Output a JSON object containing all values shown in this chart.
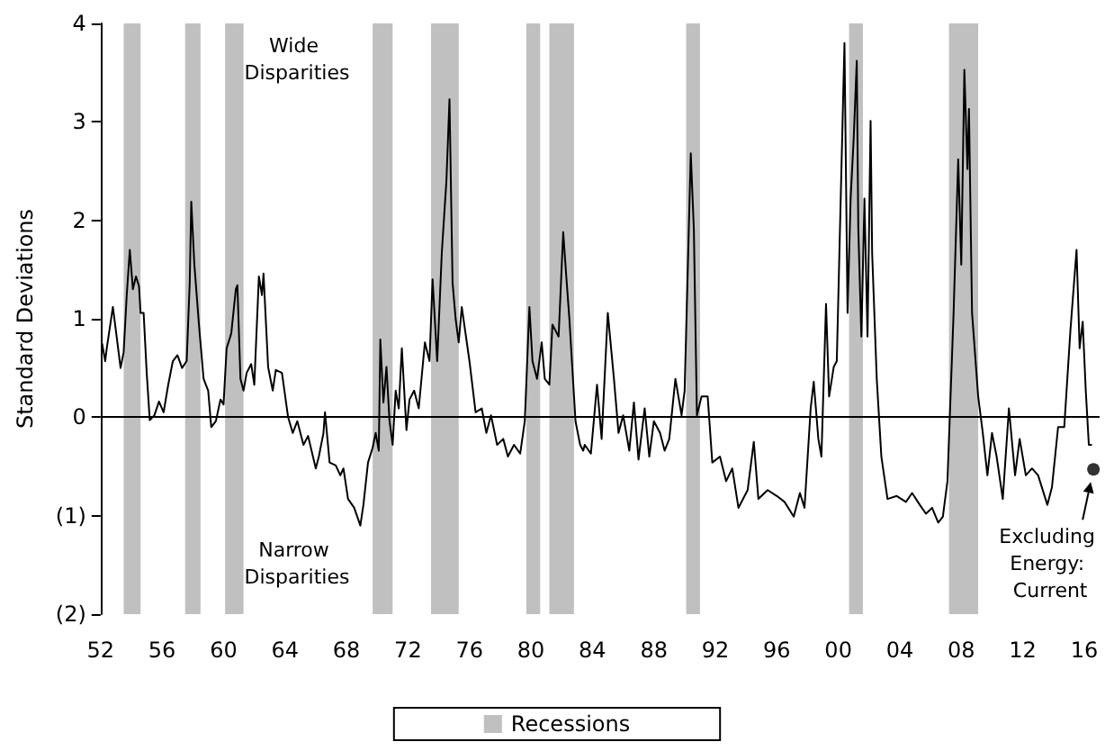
{
  "chart_data": {
    "type": "line",
    "ylabel": "Standard Deviations",
    "xlim": [
      1952,
      2017
    ],
    "xticks": [
      {
        "value": 1952,
        "label": "52"
      },
      {
        "value": 1956,
        "label": "56"
      },
      {
        "value": 1960,
        "label": "60"
      },
      {
        "value": 1964,
        "label": "64"
      },
      {
        "value": 1968,
        "label": "68"
      },
      {
        "value": 1972,
        "label": "72"
      },
      {
        "value": 1976,
        "label": "76"
      },
      {
        "value": 1980,
        "label": "80"
      },
      {
        "value": 1984,
        "label": "84"
      },
      {
        "value": 1988,
        "label": "88"
      },
      {
        "value": 1992,
        "label": "92"
      },
      {
        "value": 1996,
        "label": "96"
      },
      {
        "value": 2000,
        "label": "00"
      },
      {
        "value": 2004,
        "label": "04"
      },
      {
        "value": 2008,
        "label": "08"
      },
      {
        "value": 2012,
        "label": "12"
      },
      {
        "value": 2016,
        "label": "16"
      }
    ],
    "ylim": [
      -2,
      4
    ],
    "yticks": [
      {
        "value": -2,
        "label": "(2)"
      },
      {
        "value": -1,
        "label": "(1)"
      },
      0,
      1,
      2,
      3,
      4
    ],
    "grid": false,
    "legend": "bottom",
    "series": [
      {
        "color": "#000000",
        "x": [
          1952.1,
          1952.3,
          1952.4,
          1952.8,
          1953.1,
          1953.3,
          1953.5,
          1953.7,
          1953.9,
          1954.1,
          1954.3,
          1954.5,
          1954.6,
          1954.8,
          1955.0,
          1955.2,
          1955.5,
          1955.8,
          1956.1,
          1956.4,
          1956.7,
          1957.0,
          1957.3,
          1957.6,
          1957.8,
          1957.9,
          1958.1,
          1958.4,
          1958.7,
          1959.0,
          1959.2,
          1959.5,
          1959.8,
          1960.0,
          1960.2,
          1960.5,
          1960.8,
          1960.9,
          1961.1,
          1961.3,
          1961.5,
          1961.8,
          1962.0,
          1962.3,
          1962.5,
          1962.6,
          1962.9,
          1963.2,
          1963.4,
          1963.8,
          1964.2,
          1964.5,
          1964.8,
          1965.2,
          1965.5,
          1966.0,
          1966.2,
          1966.5,
          1966.6,
          1966.9,
          1967.3,
          1967.6,
          1967.8,
          1968.1,
          1968.5,
          1968.9,
          1969.1,
          1969.4,
          1969.7,
          1969.9,
          1970.1,
          1970.2,
          1970.4,
          1970.6,
          1970.8,
          1971.0,
          1971.2,
          1971.4,
          1971.6,
          1971.9,
          1972.1,
          1972.4,
          1972.7,
          1973.1,
          1973.4,
          1973.6,
          1973.9,
          1974.2,
          1974.5,
          1974.7,
          1974.9,
          1975.1,
          1975.3,
          1975.5,
          1976.0,
          1976.4,
          1976.8,
          1977.1,
          1977.4,
          1977.8,
          1978.2,
          1978.5,
          1978.9,
          1979.3,
          1979.6,
          1979.9,
          1980.1,
          1980.4,
          1980.7,
          1980.9,
          1981.2,
          1981.4,
          1981.8,
          1982.1,
          1982.3,
          1982.5,
          1982.9,
          1983.2,
          1983.4,
          1983.5,
          1983.9,
          1984.3,
          1984.6,
          1985.0,
          1985.4,
          1985.7,
          1986.0,
          1986.4,
          1986.7,
          1987.0,
          1987.4,
          1987.7,
          1988.0,
          1988.4,
          1988.7,
          1989.0,
          1989.4,
          1989.8,
          1990.0,
          1990.4,
          1990.6,
          1990.8,
          1991.1,
          1991.5,
          1991.8,
          1992.3,
          1992.7,
          1993.1,
          1993.5,
          1994.1,
          1994.5,
          1994.8,
          1995.4,
          1996.0,
          1996.5,
          1997.1,
          1997.5,
          1997.8,
          1998.2,
          1998.4,
          1998.7,
          1998.9,
          1999.2,
          1999.4,
          1999.7,
          1999.9,
          2000.4,
          2000.6,
          2000.8,
          2001.0,
          2001.2,
          2001.3,
          2001.5,
          2001.7,
          2001.9,
          2002.1,
          2002.2,
          2002.5,
          2002.8,
          2003.2,
          2003.8,
          2004.4,
          2004.8,
          2005.3,
          2005.7,
          2006.1,
          2006.5,
          2006.8,
          2007.1,
          2007.5,
          2007.8,
          2008.0,
          2008.2,
          2008.4,
          2008.5,
          2008.7,
          2009.1,
          2009.4,
          2009.7,
          2010.0,
          2010.3,
          2010.7,
          2011.1,
          2011.5,
          2011.8,
          2012.2,
          2012.6,
          2013.0,
          2013.6,
          2013.9,
          2014.3,
          2014.7,
          2015.1,
          2015.5,
          2015.7,
          2015.9,
          2016.1,
          2016.3,
          2016.5
        ],
        "values": [
          0.75,
          0.57,
          0.7,
          1.12,
          0.75,
          0.5,
          0.66,
          1.24,
          1.7,
          1.3,
          1.43,
          1.33,
          1.06,
          1.06,
          0.45,
          -0.03,
          0.02,
          0.16,
          0.05,
          0.33,
          0.57,
          0.63,
          0.5,
          0.57,
          1.37,
          2.19,
          1.55,
          0.94,
          0.39,
          0.27,
          -0.1,
          -0.04,
          0.18,
          0.13,
          0.7,
          0.85,
          1.3,
          1.34,
          0.39,
          0.27,
          0.45,
          0.54,
          0.33,
          1.43,
          1.24,
          1.46,
          0.51,
          0.27,
          0.48,
          0.45,
          0,
          -0.16,
          -0.04,
          -0.28,
          -0.19,
          -0.52,
          -0.4,
          -0.16,
          0.05,
          -0.46,
          -0.49,
          -0.59,
          -0.52,
          -0.83,
          -0.92,
          -1.1,
          -0.89,
          -0.46,
          -0.31,
          -0.16,
          -0.34,
          0.79,
          0.15,
          0.51,
          -0.04,
          -0.28,
          0.27,
          0.09,
          0.7,
          -0.13,
          0.18,
          0.27,
          0.09,
          0.76,
          0.57,
          1.4,
          0.57,
          1.67,
          2.4,
          3.23,
          1.37,
          1.0,
          0.76,
          1.12,
          0.57,
          0.05,
          0.09,
          -0.16,
          0.02,
          -0.28,
          -0.22,
          -0.4,
          -0.28,
          -0.37,
          -0.04,
          1.12,
          0.57,
          0.39,
          0.76,
          0.39,
          0.33,
          0.94,
          0.82,
          1.88,
          1.43,
          1.0,
          -0.04,
          -0.28,
          -0.34,
          -0.28,
          -0.37,
          0.33,
          -0.22,
          1.06,
          0.39,
          -0.16,
          0.02,
          -0.34,
          0.15,
          -0.43,
          0.09,
          -0.4,
          -0.04,
          -0.16,
          -0.34,
          -0.22,
          0.39,
          0.02,
          0.27,
          2.68,
          1.91,
          0.02,
          0.21,
          0.21,
          -0.46,
          -0.4,
          -0.65,
          -0.52,
          -0.92,
          -0.74,
          -0.25,
          -0.83,
          -0.74,
          -0.8,
          -0.86,
          -1.01,
          -0.77,
          -0.92,
          0.09,
          0.36,
          -0.22,
          -0.4,
          1.15,
          0.21,
          0.51,
          0.57,
          3.8,
          1.06,
          2.22,
          2.83,
          3.62,
          1.91,
          0.82,
          2.22,
          0.82,
          3.01,
          1.67,
          0.39,
          -0.4,
          -0.83,
          -0.8,
          -0.86,
          -0.77,
          -0.89,
          -0.98,
          -0.92,
          -1.07,
          -1.01,
          -0.65,
          1.06,
          2.62,
          1.55,
          3.53,
          2.52,
          3.13,
          1.06,
          0.21,
          -0.16,
          -0.59,
          -0.16,
          -0.4,
          -0.83,
          0.09,
          -0.59,
          -0.22,
          -0.59,
          -0.52,
          -0.59,
          -0.89,
          -0.71,
          -0.1,
          -0.1,
          0.88,
          1.7,
          0.7,
          0.97,
          0.27,
          -0.28,
          -0.28
        ]
      },
      {
        "type": "scatter",
        "color": "#000000",
        "x": [
          2016.6
        ],
        "values": [
          -0.53
        ]
      }
    ],
    "ref_lines": [
      {
        "axis": "y",
        "value": 0,
        "color": "#000000"
      }
    ],
    "bands": [
      {
        "axis": "x",
        "from": 1953.5,
        "to": 1954.6,
        "label": "Recessions",
        "color": "#c0c0c0"
      },
      {
        "axis": "x",
        "from": 1957.5,
        "to": 1958.5,
        "color": "#c0c0c0"
      },
      {
        "axis": "x",
        "from": 1960.1,
        "to": 1961.3,
        "color": "#c0c0c0"
      },
      {
        "axis": "x",
        "from": 1969.7,
        "to": 1971.0,
        "color": "#c0c0c0"
      },
      {
        "axis": "x",
        "from": 1973.5,
        "to": 1975.3,
        "color": "#c0c0c0"
      },
      {
        "axis": "x",
        "from": 1979.7,
        "to": 1980.6,
        "color": "#c0c0c0"
      },
      {
        "axis": "x",
        "from": 1981.2,
        "to": 1982.8,
        "color": "#c0c0c0"
      },
      {
        "axis": "x",
        "from": 1990.1,
        "to": 1991.0,
        "color": "#c0c0c0"
      },
      {
        "axis": "x",
        "from": 2000.7,
        "to": 2001.6,
        "color": "#c0c0c0"
      },
      {
        "axis": "x",
        "from": 2007.2,
        "to": 2009.1,
        "color": "#c0c0c0"
      }
    ],
    "annotations": [
      "Wide Disparities",
      "Narrow Disparities",
      {
        "text": "Excluding Energy: Current",
        "x": 2016.6,
        "y": -0.53
      }
    ]
  }
}
